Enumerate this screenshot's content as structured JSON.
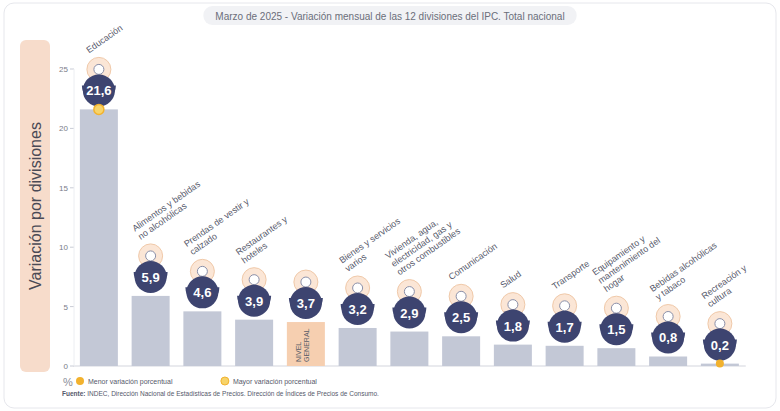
{
  "chart_data": {
    "type": "bar",
    "title": "Marzo de 2025 - Variación mensual de las 12 divisiones del IPC. Total nacional",
    "ylabel": "Variación por divisiones",
    "y_axis_unit": "%",
    "categories": [
      "Educación",
      "Alimentos y bebidas no alcohólicas",
      "Prendas de vestir y calzado",
      "Restaurantes y hoteles",
      "NIVEL GENERAL",
      "Bienes y servicios varios",
      "Vivienda, agua, electricidad, gas y otros combustibles",
      "Comunicación",
      "Salud",
      "Transporte",
      "Equipamiento y mantenimiento del hogar",
      "Bebidas alcohólicas y tabaco",
      "Recreación y cultura"
    ],
    "values": [
      21.6,
      5.9,
      4.6,
      3.9,
      3.7,
      3.2,
      2.9,
      2.5,
      1.8,
      1.7,
      1.5,
      0.8,
      0.2
    ],
    "value_labels": [
      "21,6",
      "5,9",
      "4,6",
      "3,9",
      "3,7",
      "3,2",
      "2,9",
      "2,5",
      "1,8",
      "1,7",
      "1,5",
      "0,8",
      "0,2"
    ],
    "colors": [
      "#c3c8d6",
      "#c3c8d6",
      "#c3c8d6",
      "#c3c8d6",
      "#f6cfb0",
      "#c3c8d6",
      "#c3c8d6",
      "#c3c8d6",
      "#c3c8d6",
      "#c3c8d6",
      "#c3c8d6",
      "#c3c8d6",
      "#c3c8d6"
    ],
    "ylim": [
      0,
      25
    ],
    "yticks": [
      0,
      5,
      10,
      15,
      20,
      25
    ],
    "grid": false,
    "data_labels": true,
    "annotations": [
      {
        "text": "Menor variación porcentual",
        "color": "#f2b22e"
      },
      {
        "text": "Mayor variación porcentual",
        "color": "#f7d46a"
      }
    ],
    "source": "Fuente: INDEC, Dirección Nacional de Estadísticas de Precios. Dirección de Índices de Precios de Consumo."
  }
}
